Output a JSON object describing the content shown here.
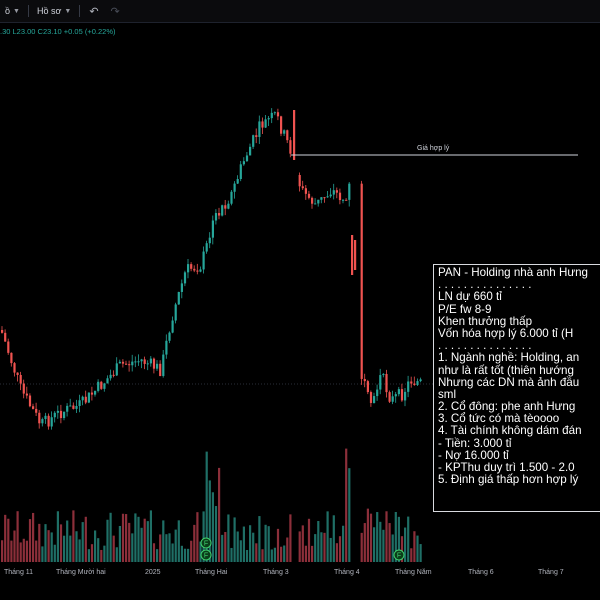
{
  "toolbar": {
    "item1": "ồ",
    "item2": "Hồ sơ",
    "undo_icon": "undo-icon",
    "redo_icon": "redo-icon"
  },
  "ohlc": {
    "text": ".30  L23.00  C23.10  +0.05 (+0.22%)"
  },
  "fair_value": {
    "label": "Giá hợp lý"
  },
  "note": {
    "lines": [
      "PAN - Holding nhà anh Hưng",
      ". . . . . . . . . . . . . . .",
      "LN dự 660 tỉ",
      "P/E fw 8-9",
      "Khen thưởng thấp",
      "Vốn hóa hợp lý 6.000 tỉ  (H",
      ". . . . . . . . . . . . . . .",
      "1. Ngành nghề: Holding, an",
      "như là rất tốt (thiên hướng",
      "Nhưng các DN mà ảnh đầu",
      "sml",
      "2. Cổ đông: phe anh Hưng",
      "3. Cổ tức có mà tèoooo",
      "4. Tài chính không dám đán",
      " - Tiền: 3.000 tỉ",
      " - Nợ 16.000 tỉ",
      " - KPThu duy trì 1.500 - 2.0",
      "5. Định giá thấp hơn hợp lý"
    ]
  },
  "x_axis": {
    "labels": [
      "Tháng 11",
      "Tháng Mười hai",
      "2025",
      "Tháng Hai",
      "Tháng 3",
      "Tháng 4",
      "Tháng Năm",
      "Tháng 6",
      "Tháng 7"
    ]
  },
  "markers": {
    "letter": "F"
  },
  "colors": {
    "background": "#000000",
    "up": "#26a69a",
    "down": "#ef5350",
    "vol_up": "#1f6f66",
    "vol_down": "#8c2f3a",
    "text": "#d1d4dc"
  }
}
